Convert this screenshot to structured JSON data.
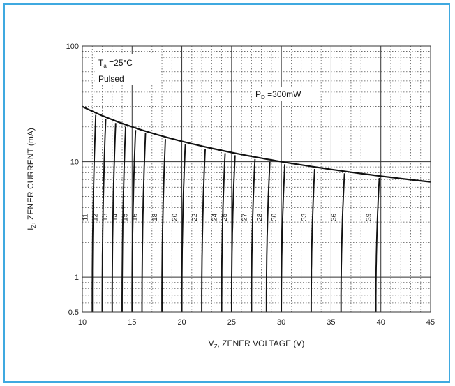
{
  "chart_data": {
    "type": "line",
    "title": "",
    "xlabel": {
      "main": "V",
      "sub": "Z",
      "rest": ", ZENER VOLTAGE (V)"
    },
    "ylabel": {
      "main": "I",
      "sub": "Z",
      "rest": ", ZENER CURRENT (mA)"
    },
    "xlim": [
      10,
      45
    ],
    "ylim": [
      0.5,
      100
    ],
    "yscale": "log",
    "x_ticks": [
      "10",
      "15",
      "20",
      "25",
      "30",
      "35",
      "40",
      "45"
    ],
    "y_ticks": [
      {
        "value": 100,
        "label": "100"
      },
      {
        "value": 10,
        "label": "10"
      },
      {
        "value": 1,
        "label": "1"
      },
      {
        "value": 0.5,
        "label": "0.5"
      }
    ],
    "grid": true,
    "annotations": {
      "temperature": {
        "main": "T",
        "sub": "a",
        "rest": " =25°C"
      },
      "mode": "Pulsed",
      "power": {
        "main": "P",
        "sub": "D",
        "rest": " =300mW"
      }
    },
    "power_limit": {
      "name": "PD=300mW",
      "x": [
        10,
        15,
        20,
        25,
        30,
        35,
        40,
        45
      ],
      "y": [
        30,
        20,
        15,
        12,
        10,
        8.57,
        7.5,
        6.67
      ]
    },
    "series": [
      {
        "name": "11",
        "vz": 11
      },
      {
        "name": "12",
        "vz": 12
      },
      {
        "name": "13",
        "vz": 13
      },
      {
        "name": "14",
        "vz": 14
      },
      {
        "name": "15",
        "vz": 15
      },
      {
        "name": "16",
        "vz": 16
      },
      {
        "name": "18",
        "vz": 18
      },
      {
        "name": "20",
        "vz": 20
      },
      {
        "name": "22",
        "vz": 22
      },
      {
        "name": "24",
        "vz": 24
      },
      {
        "name": "25",
        "vz": 25
      },
      {
        "name": "27",
        "vz": 27
      },
      {
        "name": "28",
        "vz": 28.5
      },
      {
        "name": "30",
        "vz": 30
      },
      {
        "name": "33",
        "vz": 33
      },
      {
        "name": "36",
        "vz": 36
      },
      {
        "name": "39",
        "vz": 39.5
      }
    ],
    "curve_start_current": 0.5
  }
}
